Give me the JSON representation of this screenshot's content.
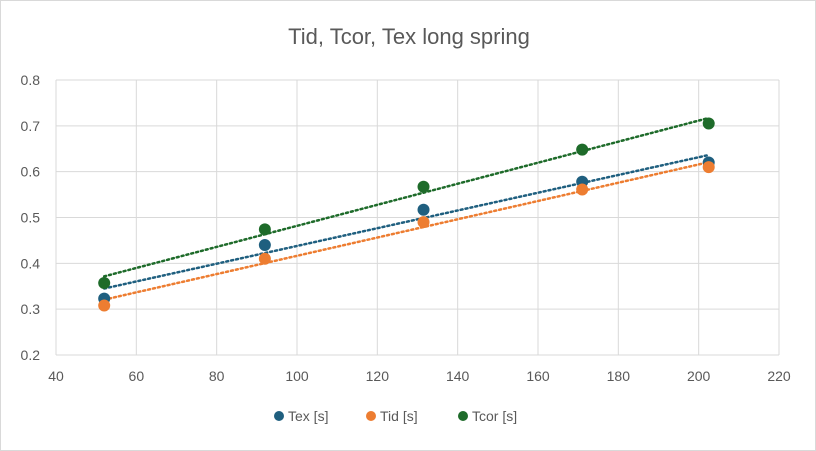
{
  "chart_data": {
    "type": "scatter",
    "title": "Tid, Tcor, Tex long spring",
    "xlabel": "",
    "ylabel": "",
    "xlim": [
      40,
      220
    ],
    "ylim": [
      0.2,
      0.8
    ],
    "x_ticks": [
      40,
      60,
      80,
      100,
      120,
      140,
      160,
      180,
      200,
      220
    ],
    "y_ticks": [
      0.2,
      0.3,
      0.4,
      0.5,
      0.6,
      0.7,
      0.8
    ],
    "x_tick_labels": [
      "40",
      "60",
      "80",
      "100",
      "120",
      "140",
      "160",
      "180",
      "200",
      "220"
    ],
    "y_tick_labels": [
      "0.2",
      "0.3",
      "0.4",
      "0.5",
      "0.6",
      "0.7",
      "0.8"
    ],
    "grid": true,
    "legend_position": "bottom",
    "trendlines": "linear, dotted",
    "series": [
      {
        "name": "Tex [s]",
        "color": "#1f5f7f",
        "x": [
          52,
          92,
          131.5,
          171,
          202.5
        ],
        "y": [
          0.323,
          0.44,
          0.517,
          0.578,
          0.62
        ]
      },
      {
        "name": "Tid [s]",
        "color": "#ed7d31",
        "x": [
          52,
          92,
          131.5,
          171,
          202.5
        ],
        "y": [
          0.308,
          0.41,
          0.49,
          0.561,
          0.61
        ]
      },
      {
        "name": "Tcor [s]",
        "color": "#1e6b2a",
        "x": [
          52,
          92,
          131.5,
          171,
          202.5
        ],
        "y": [
          0.357,
          0.474,
          0.567,
          0.648,
          0.705
        ]
      }
    ]
  }
}
